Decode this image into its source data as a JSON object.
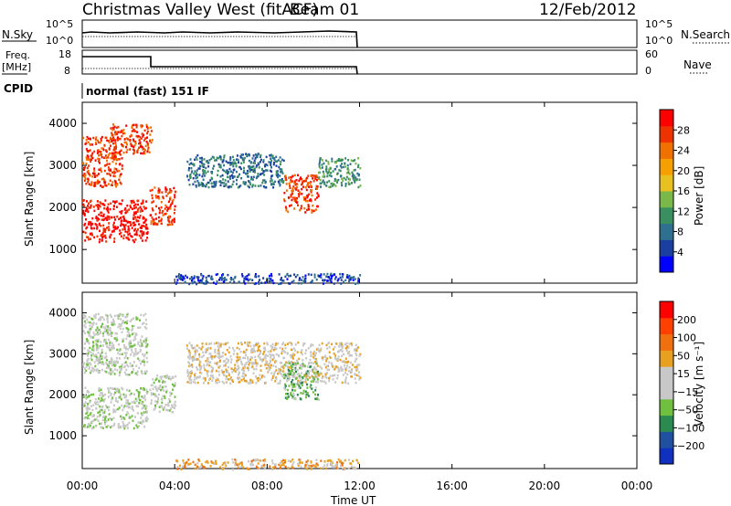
{
  "header": {
    "station": "Christmas Valley West (fitACF)",
    "beam": "Beam 01",
    "date": "12/Feb/2012"
  },
  "strips": {
    "nsky": {
      "label": "N.Sky",
      "left_ticks": [
        "10^5",
        "10^0"
      ],
      "right_ticks": [
        "10^5",
        "10^0"
      ],
      "right_label": "N.Search"
    },
    "freq": {
      "label_top": "Freq.",
      "label_unit": "[MHz]",
      "left_ticks": [
        "18",
        "8"
      ],
      "right_ticks": [
        "60",
        "0"
      ],
      "right_label": "Nave"
    },
    "cpid": {
      "label": "CPID",
      "mode_text": "normal (fast) 151 IF"
    }
  },
  "colors": {
    "power_scale": [
      "#0000ff",
      "#1a3fa0",
      "#2f6f8f",
      "#3a8f60",
      "#7ab84a",
      "#e8c020",
      "#f5a000",
      "#f07000",
      "#ee3300",
      "#ff0000"
    ],
    "velocity_scale": [
      "#1030c0",
      "#2050a0",
      "#2a8a50",
      "#70c040",
      "#c8c8c8",
      "#c8c8c8",
      "#e8a020",
      "#f07010",
      "#ff4000",
      "#ff0000"
    ]
  },
  "chart_data": [
    {
      "type": "heatmap",
      "name": "power",
      "xlabel": "",
      "ylabel": "Slant Range [km]",
      "colorbar_label": "Power [dB]",
      "colorbar_ticks": [
        "28",
        "24",
        "20",
        "16",
        "12",
        "8",
        "4"
      ],
      "y_ticks": [
        "4000",
        "3000",
        "2000",
        "1000"
      ],
      "ylim": [
        200,
        4500
      ],
      "xlim": [
        0,
        24
      ],
      "regions": [
        {
          "t0": 0.0,
          "t1": 2.8,
          "r0": 1200,
          "r1": 2200,
          "level": 9,
          "note": "high power lower band rising"
        },
        {
          "t0": 0.0,
          "t1": 1.7,
          "r0": 2500,
          "r1": 3700,
          "level": 8
        },
        {
          "t0": 1.2,
          "t1": 3.0,
          "r0": 3300,
          "r1": 4000,
          "level": 8
        },
        {
          "t0": 2.9,
          "t1": 4.0,
          "r0": 1600,
          "r1": 2500,
          "level": 8
        },
        {
          "t0": 4.5,
          "t1": 8.7,
          "r0": 2500,
          "r1": 3300,
          "level": 2
        },
        {
          "t0": 8.7,
          "t1": 10.2,
          "r0": 1900,
          "r1": 2800,
          "level": 8
        },
        {
          "t0": 10.2,
          "t1": 12.0,
          "r0": 2500,
          "r1": 3200,
          "level": 3
        },
        {
          "t0": 4.0,
          "t1": 12.0,
          "r0": 200,
          "r1": 450,
          "level": 1
        }
      ]
    },
    {
      "type": "heatmap",
      "name": "velocity",
      "xlabel": "Time UT",
      "ylabel": "Slant Range [km]",
      "colorbar_label": "Velocity [m s⁻¹]",
      "colorbar_ticks": [
        "200",
        "100",
        "50",
        "15",
        "−15",
        "−50",
        "−100",
        "−200"
      ],
      "y_ticks": [
        "4000",
        "3000",
        "2000",
        "1000"
      ],
      "x_ticks": [
        "00:00",
        "04:00",
        "08:00",
        "12:00",
        "16:00",
        "20:00",
        "00:00"
      ],
      "ylim": [
        200,
        4500
      ],
      "xlim": [
        0,
        24
      ],
      "regions": [
        {
          "t0": 0.0,
          "t1": 2.8,
          "r0": 1200,
          "r1": 2200,
          "level": 4
        },
        {
          "t0": 0.0,
          "t1": 2.8,
          "r0": 2500,
          "r1": 4000,
          "level": 4
        },
        {
          "t0": 2.9,
          "t1": 4.0,
          "r0": 1600,
          "r1": 2500,
          "level": 4
        },
        {
          "t0": 4.5,
          "t1": 12.0,
          "r0": 2300,
          "r1": 3300,
          "level": 5
        },
        {
          "t0": 8.7,
          "t1": 10.2,
          "r0": 1900,
          "r1": 2800,
          "level": 3
        },
        {
          "t0": 4.0,
          "t1": 12.0,
          "r0": 200,
          "r1": 450,
          "level": 6
        }
      ]
    }
  ]
}
